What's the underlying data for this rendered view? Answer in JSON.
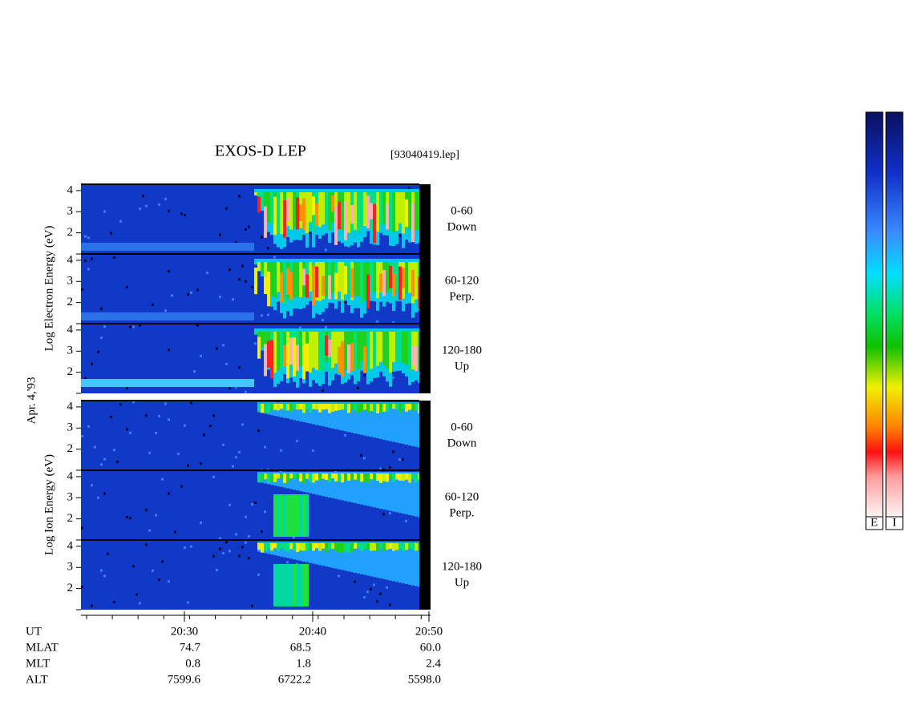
{
  "chart_data": {
    "type": "spectrogram",
    "title": "EXOS-D LEP",
    "file": "[93040419.lep]",
    "date": "Apr. 4,'93",
    "species": [
      {
        "label": "Log Electron Energy (eV)",
        "panels": [
          {
            "range": "0-60",
            "direction": "Down"
          },
          {
            "range": "60-120",
            "direction": "Perp."
          },
          {
            "range": "120-180",
            "direction": "Up"
          }
        ]
      },
      {
        "label": "Log Ion Energy (eV)",
        "panels": [
          {
            "range": "0-60",
            "direction": "Down"
          },
          {
            "range": "60-120",
            "direction": "Perp."
          },
          {
            "range": "120-180",
            "direction": "Up"
          }
        ]
      }
    ],
    "ylim": [
      1,
      4.3
    ],
    "yticks": [
      2,
      3,
      4
    ],
    "x_axis": {
      "name": "UT",
      "labels": [
        "20:30",
        "20:40",
        "20:50"
      ]
    },
    "orbit": [
      {
        "name": "MLAT",
        "values": [
          "74.7",
          "68.5",
          "60.0"
        ]
      },
      {
        "name": "MLT",
        "values": [
          "0.8",
          "1.8",
          "2.4"
        ]
      },
      {
        "name": "ALT",
        "values": [
          "7599.6",
          "6722.2",
          "5598.0"
        ]
      }
    ],
    "colorbars": [
      "E",
      "I"
    ]
  }
}
